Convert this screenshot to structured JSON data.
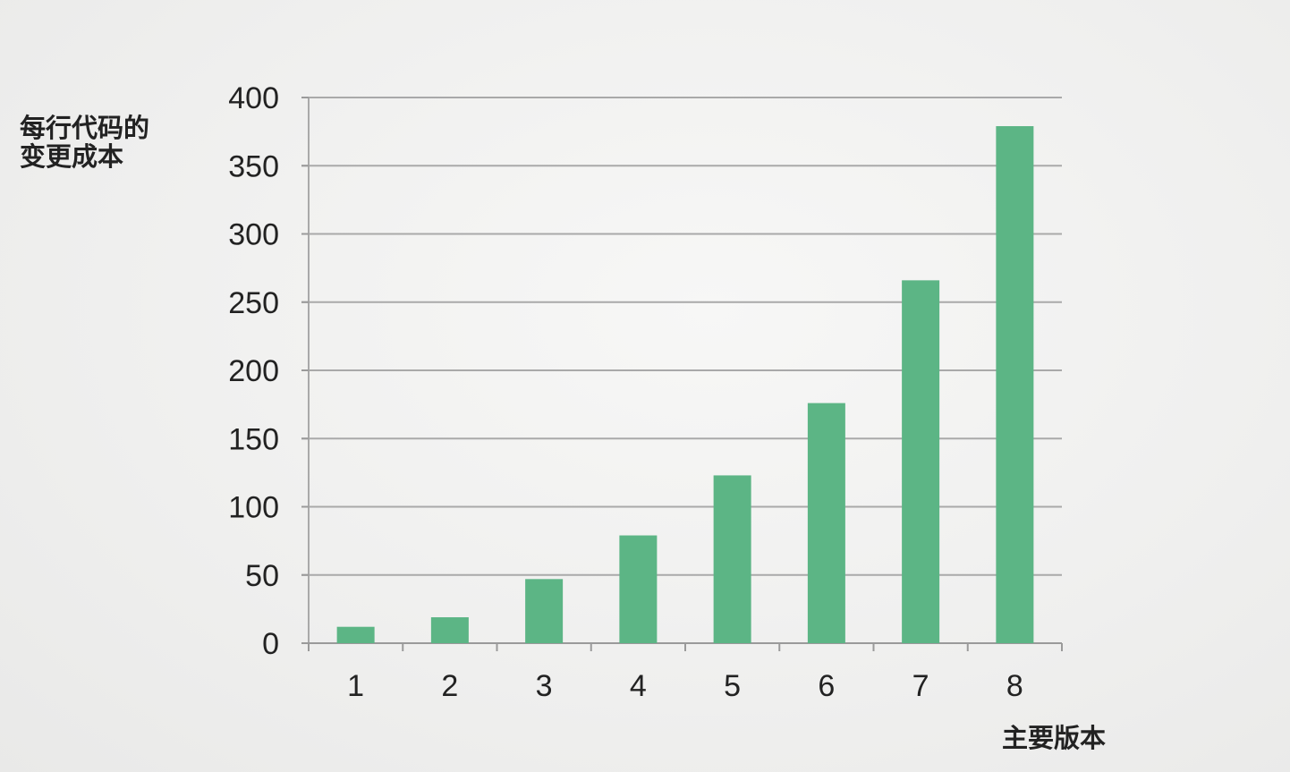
{
  "chart_data": {
    "type": "bar",
    "categories": [
      "1",
      "2",
      "3",
      "4",
      "5",
      "6",
      "7",
      "8"
    ],
    "values": [
      12,
      19,
      47,
      79,
      123,
      176,
      266,
      379
    ],
    "title": "",
    "xlabel": "主要版本",
    "ylabel_lines": [
      "每行代码的",
      "变更成本"
    ],
    "ylim": [
      0,
      400
    ],
    "yticks": [
      0,
      50,
      100,
      150,
      200,
      250,
      300,
      350,
      400
    ],
    "grid": true,
    "legend": "none",
    "bar_color": "#5cb585",
    "grid_color": "#a9a9a9",
    "text_color": "#222222"
  }
}
